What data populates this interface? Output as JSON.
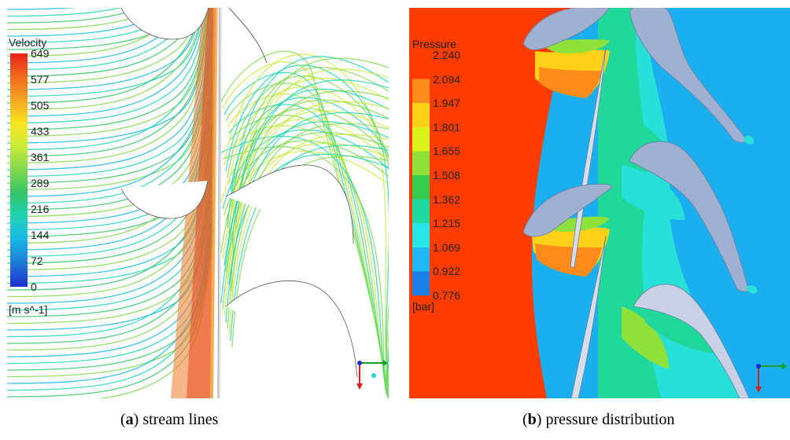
{
  "panel_a": {
    "legend_title": "Velocity",
    "ticks": [
      "649",
      "577",
      "505",
      "433",
      "361",
      "289",
      "216",
      "144",
      "72",
      "0"
    ],
    "unit": "[m s^-1]",
    "colors": [
      "#e8231b",
      "#f26a1e",
      "#f5a623",
      "#f7e61d",
      "#c9ea3a",
      "#7fd84e",
      "#33c466",
      "#1fd3b6",
      "#19b7e8",
      "#1f78d6",
      "#1a2fcf"
    ],
    "caption_letter": "a",
    "caption_text": "stream lines"
  },
  "panel_b": {
    "legend_title": "Pressure",
    "ticks": [
      "2.240",
      "2.094",
      "1.947",
      "1.801",
      "1.655",
      "1.508",
      "1.362",
      "1.215",
      "1.069",
      "0.922",
      "0.776"
    ],
    "unit": "[bar]",
    "colors": [
      "#ff3c00",
      "#ff8c1a",
      "#ffd21a",
      "#d9f21a",
      "#8ee03a",
      "#34cc4c",
      "#1ed9a0",
      "#27e6e6",
      "#1fb8f2",
      "#1a7fe6",
      "#1a3ad6"
    ],
    "caption_letter": "b",
    "caption_text": "pressure distribution"
  }
}
